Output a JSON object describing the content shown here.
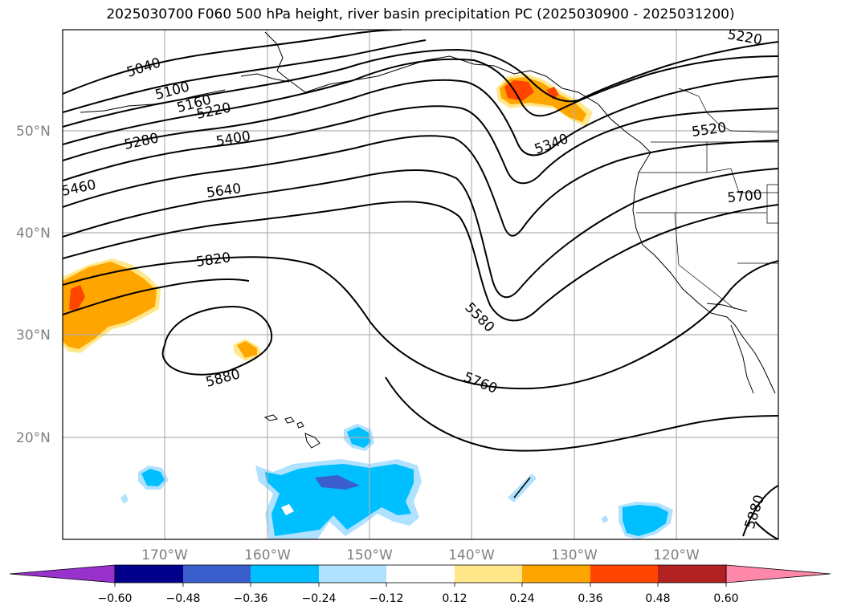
{
  "title": "2025030700 F060 500 hPa height, river basin precipitation PC (2025030900 - 2025031200)",
  "map": {
    "lon_ticks": [
      "170°W",
      "160°W",
      "150°W",
      "140°W",
      "130°W",
      "120°W"
    ],
    "lat_ticks": [
      "50°N",
      "40°N",
      "30°N",
      "20°N"
    ],
    "contour_labels": [
      "5040",
      "5100",
      "5160",
      "5220",
      "5280",
      "5400",
      "5460",
      "5640",
      "5820",
      "5880",
      "5220",
      "5340",
      "5520",
      "5700",
      "5580",
      "5760",
      "5880"
    ]
  },
  "colorbar": {
    "ticks": [
      "−0.60",
      "−0.48",
      "−0.36",
      "−0.24",
      "−0.12",
      "0.12",
      "0.24",
      "0.36",
      "0.48",
      "0.60"
    ],
    "colors": [
      "#9932cc",
      "#00008b",
      "#3a5fcd",
      "#00bfff",
      "#b0e2ff",
      "#ffffff",
      "#ffe78a",
      "#ffa500",
      "#ff4500",
      "#b22222",
      "#ff88aa"
    ]
  }
}
